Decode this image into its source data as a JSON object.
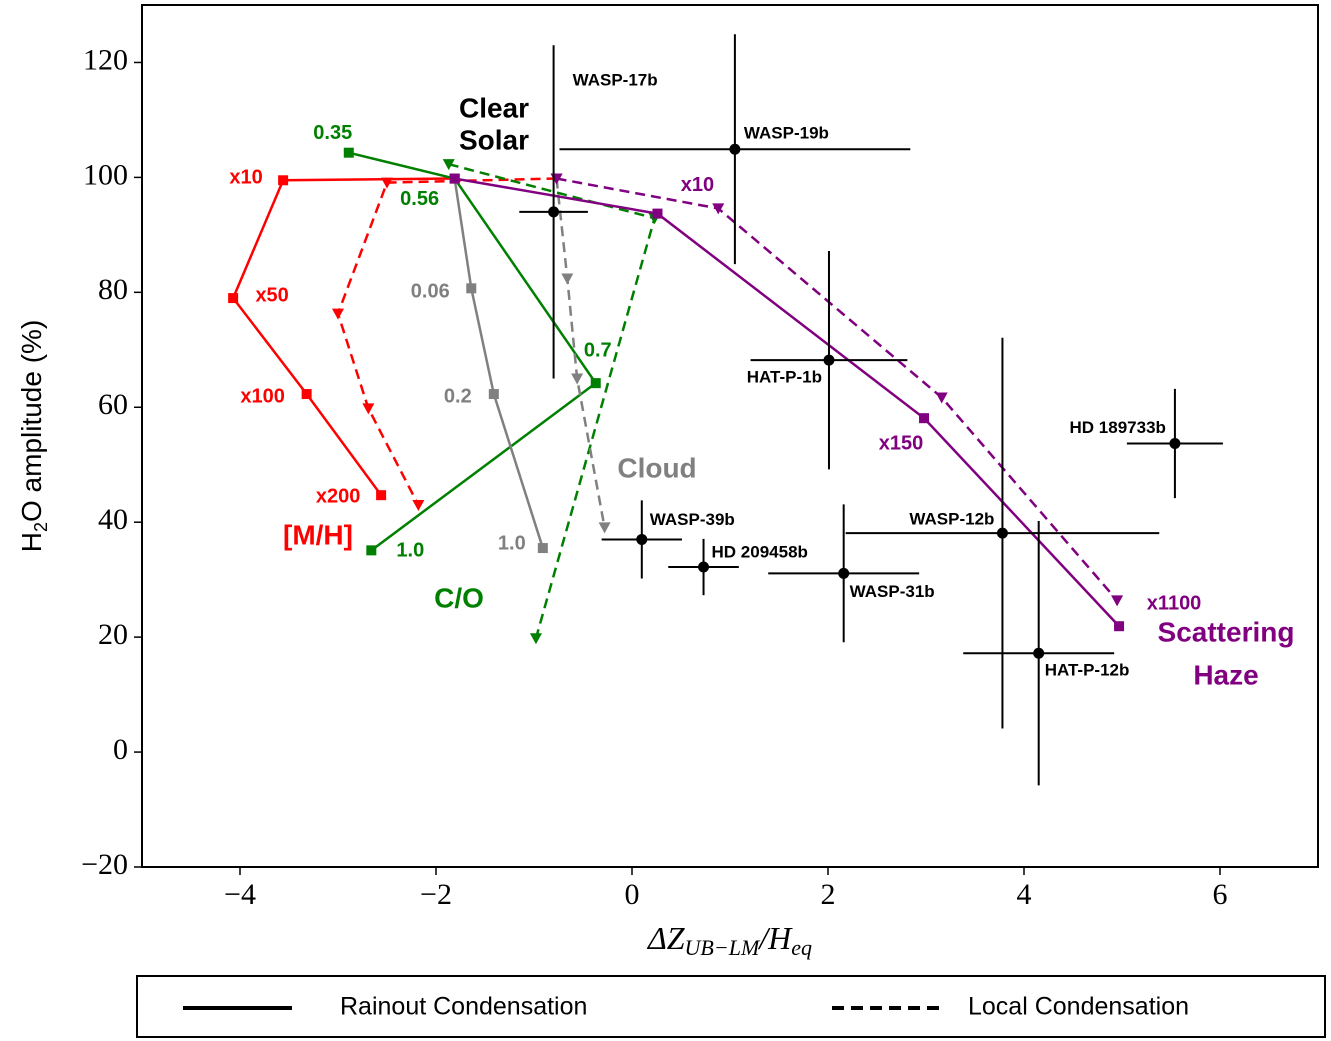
{
  "chart_data": {
    "type": "scatter",
    "x_label": [
      "ΔZ",
      "UB−LM",
      "/H",
      "eq"
    ],
    "y_label": [
      "H",
      "2",
      "O amplitude (%)"
    ],
    "xlim": [
      -5,
      7
    ],
    "ylim": [
      -20,
      130
    ],
    "xticks": [
      {
        "value": -4,
        "label": "−4"
      },
      {
        "value": -2,
        "label": "−2"
      },
      0,
      2,
      4,
      6
    ],
    "yticks": [
      {
        "value": -20,
        "label": "−20"
      },
      0,
      20,
      40,
      60,
      80,
      100,
      120
    ],
    "solar_label": [
      "Clear",
      "Solar"
    ],
    "models": [
      {
        "label": [
          "[M/H]"
        ],
        "color": "#ff0000",
        "rainout": {
          "x": [
            -1.81,
            -3.56,
            -4.07,
            -3.32,
            -2.56
          ],
          "y": [
            99.8,
            99.5,
            79.0,
            62.3,
            44.7
          ],
          "point_labels": [
            null,
            "x10",
            "x50",
            "x100",
            "x200"
          ]
        },
        "local": {
          "x": [
            -0.77,
            -2.5,
            -3.0,
            -2.69,
            -2.18
          ],
          "y": [
            99.8,
            99.1,
            76.3,
            59.8,
            43.0
          ]
        }
      },
      {
        "label": [
          "C/O"
        ],
        "color": "#008000",
        "rainout": {
          "x": [
            -2.89,
            -1.81,
            -0.37,
            -2.66
          ],
          "y": [
            104.3,
            99.8,
            64.2,
            35.1
          ],
          "point_labels": [
            "0.35",
            "0.56",
            "0.7",
            "1.0"
          ]
        },
        "local": {
          "x": [
            -1.87,
            0.23,
            -0.98
          ],
          "y": [
            102.3,
            92.9,
            19.8
          ]
        }
      },
      {
        "label": [
          "Cloud"
        ],
        "color": "#808080",
        "rainout": {
          "x": [
            -1.81,
            -1.64,
            -1.41,
            -0.91
          ],
          "y": [
            99.8,
            80.7,
            62.3,
            35.5
          ],
          "point_labels": [
            null,
            "0.06",
            "0.2",
            "1.0"
          ]
        },
        "local": {
          "x": [
            -0.77,
            -0.66,
            -0.56,
            -0.28
          ],
          "y": [
            99.8,
            82.4,
            65.0,
            39.1
          ]
        }
      },
      {
        "label": [
          "Scattering",
          "Haze"
        ],
        "color": "#800080",
        "rainout": {
          "x": [
            -1.81,
            0.26,
            2.98,
            4.97
          ],
          "y": [
            99.8,
            93.7,
            58.1,
            21.9
          ],
          "point_labels": [
            null,
            "x10",
            "x150",
            "x1100"
          ]
        },
        "local": {
          "x": [
            -0.77,
            0.88,
            3.16,
            4.95
          ],
          "y": [
            99.8,
            94.6,
            61.7,
            26.4
          ]
        }
      }
    ],
    "planets": {
      "color": "#000000",
      "names": [
        "WASP-17b",
        "WASP-19b",
        "HAT-P-1b",
        "HD 189733b",
        "WASP-12b",
        "HAT-P-12b",
        "WASP-39b",
        "HD 209458b",
        "WASP-31b"
      ],
      "x": [
        -0.8,
        1.05,
        2.01,
        5.54,
        3.78,
        4.15,
        0.1,
        0.73,
        2.16
      ],
      "y": [
        94,
        104.9,
        68.2,
        53.7,
        38.1,
        17.2,
        37.0,
        32.2,
        31.1
      ],
      "x_err": [
        0.35,
        1.79,
        0.8,
        0.49,
        1.6,
        0.77,
        0.41,
        0.36,
        0.77
      ],
      "y_err": [
        29,
        20,
        19,
        9.5,
        34,
        23,
        6.8,
        4.9,
        12
      ]
    },
    "legend": [
      {
        "label": "Rainout Condensation",
        "style": "solid"
      },
      {
        "label": "Local Condensation",
        "style": "dashed"
      }
    ]
  }
}
